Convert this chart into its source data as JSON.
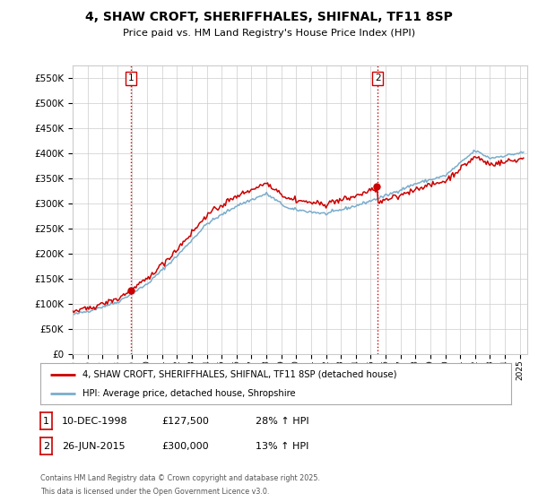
{
  "title": "4, SHAW CROFT, SHERIFFHALES, SHIFNAL, TF11 8SP",
  "subtitle": "Price paid vs. HM Land Registry's House Price Index (HPI)",
  "ylim": [
    0,
    575000
  ],
  "yticks": [
    0,
    50000,
    100000,
    150000,
    200000,
    250000,
    300000,
    350000,
    400000,
    450000,
    500000,
    550000
  ],
  "legend_line1": "4, SHAW CROFT, SHERIFFHALES, SHIFNAL, TF11 8SP (detached house)",
  "legend_line2": "HPI: Average price, detached house, Shropshire",
  "sale1_label": "1",
  "sale1_date": "10-DEC-1998",
  "sale1_price": "£127,500",
  "sale1_pct": "28% ↑ HPI",
  "sale1_year": 1998.917,
  "sale2_label": "2",
  "sale2_date": "26-JUN-2015",
  "sale2_price": "£300,000",
  "sale2_pct": "13% ↑ HPI",
  "sale2_year": 2015.458,
  "footer_line1": "Contains HM Land Registry data © Crown copyright and database right 2025.",
  "footer_line2": "This data is licensed under the Open Government Licence v3.0.",
  "red_color": "#cc0000",
  "blue_color": "#7aadcc",
  "grid_color": "#cccccc",
  "background_color": "#ffffff"
}
